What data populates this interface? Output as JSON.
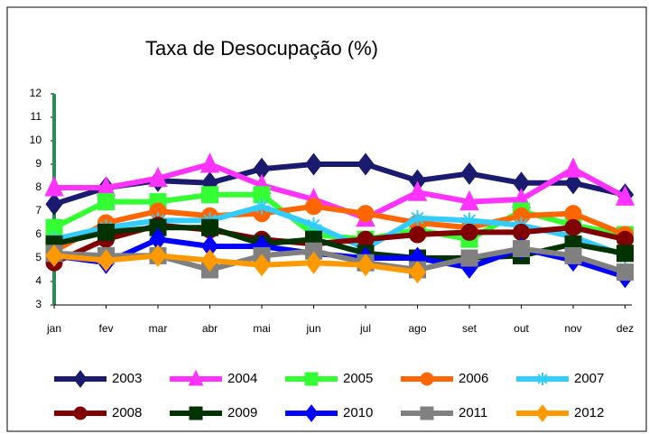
{
  "chart_data": {
    "type": "line",
    "title": "Taxa de Desocupação (%)",
    "categories": [
      "jan",
      "fev",
      "mar",
      "abr",
      "mai",
      "jun",
      "jul",
      "ago",
      "set",
      "out",
      "nov",
      "dez"
    ],
    "ylim": [
      3,
      12
    ],
    "yticks": [
      3,
      4,
      5,
      6,
      7,
      8,
      9,
      10,
      11,
      12
    ],
    "grid": false,
    "legend": "bottom",
    "series": [
      {
        "name": "2003",
        "color": "#1a1a6e",
        "marker": "diamond",
        "values": [
          7.3,
          8.0,
          8.3,
          8.2,
          8.8,
          9.0,
          9.0,
          8.3,
          8.6,
          8.2,
          8.2,
          7.7
        ]
      },
      {
        "name": "2004",
        "color": "#ff33ff",
        "marker": "triangle",
        "values": [
          8.0,
          8.0,
          8.4,
          9.0,
          8.1,
          7.5,
          6.7,
          7.8,
          7.4,
          7.5,
          8.8,
          7.6
        ]
      },
      {
        "name": "2005",
        "color": "#33ff33",
        "marker": "square",
        "values": [
          6.3,
          7.4,
          7.4,
          7.7,
          7.7,
          6.0,
          5.8,
          6.2,
          5.8,
          7.0,
          6.4,
          6.0
        ]
      },
      {
        "name": "2006",
        "color": "#ff6600",
        "marker": "circle",
        "values": [
          5.3,
          6.5,
          7.0,
          6.8,
          6.9,
          7.2,
          6.9,
          6.5,
          6.3,
          6.8,
          6.9,
          6.0
        ]
      },
      {
        "name": "2007",
        "color": "#33ccff",
        "marker": "star",
        "values": [
          5.8,
          6.3,
          6.6,
          6.6,
          7.2,
          6.4,
          5.4,
          6.7,
          6.6,
          6.4,
          5.9,
          5.1
        ]
      },
      {
        "name": "2008",
        "color": "#800000",
        "marker": "circle",
        "values": [
          4.8,
          5.8,
          6.4,
          6.2,
          5.8,
          5.6,
          5.8,
          6.0,
          6.1,
          6.1,
          6.3,
          5.8
        ]
      },
      {
        "name": "2009",
        "color": "#003300",
        "marker": "square",
        "values": [
          5.6,
          6.1,
          6.3,
          6.3,
          5.6,
          5.8,
          5.2,
          5.0,
          5.0,
          5.1,
          5.6,
          5.2
        ]
      },
      {
        "name": "2010",
        "color": "#0000ff",
        "marker": "diamond",
        "values": [
          5.1,
          4.8,
          5.8,
          5.5,
          5.5,
          5.2,
          5.0,
          5.0,
          4.6,
          5.4,
          4.9,
          4.2
        ]
      },
      {
        "name": "2011",
        "color": "#808080",
        "marker": "square",
        "values": [
          5.2,
          5.1,
          5.1,
          4.5,
          5.1,
          5.3,
          4.8,
          4.5,
          5.0,
          5.4,
          5.1,
          4.4
        ]
      },
      {
        "name": "2012",
        "color": "#ff9900",
        "marker": "diamond",
        "values": [
          5.1,
          4.9,
          5.1,
          4.9,
          4.7,
          4.8,
          4.7,
          4.4,
          null,
          null,
          null,
          null
        ]
      }
    ]
  }
}
